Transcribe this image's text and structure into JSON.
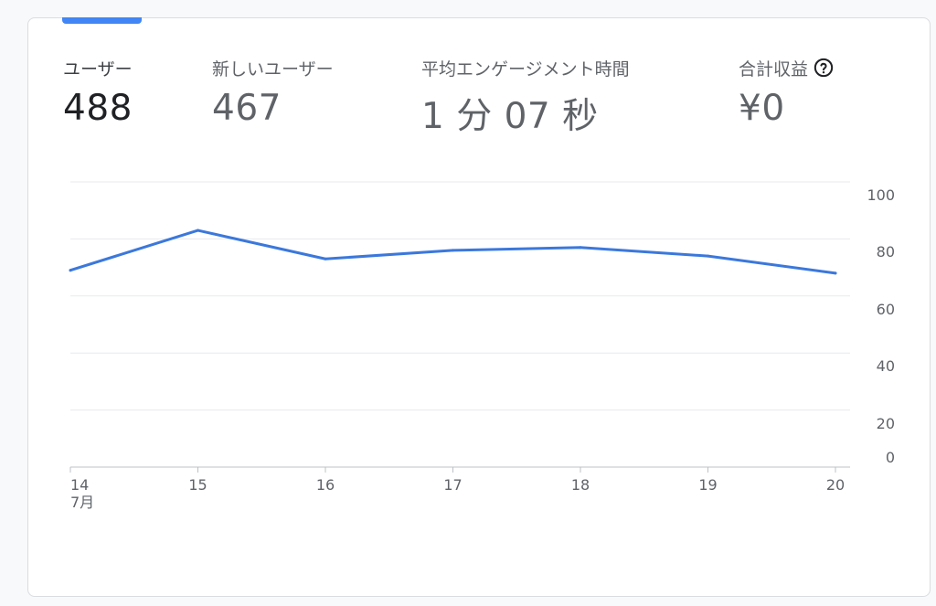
{
  "metrics": [
    {
      "label": "ユーザー",
      "value": "488"
    },
    {
      "label": "新しいユーザー",
      "value": "467"
    },
    {
      "label": "平均エンゲージメント時間",
      "value": "1 分 07 秒"
    },
    {
      "label": "合計収益",
      "value": "¥0"
    }
  ],
  "help_icon": "help-circle-icon",
  "colors": {
    "line": "#3b78dc",
    "tab_indicator": "#4285f4"
  },
  "chart_data": {
    "type": "line",
    "x": [
      "14",
      "15",
      "16",
      "17",
      "18",
      "19",
      "20"
    ],
    "x_sublabel": "7月",
    "series": [
      {
        "values": [
          69,
          83,
          73,
          76,
          77,
          74,
          68
        ]
      }
    ],
    "y_ticks": [
      "100",
      "80",
      "60",
      "40",
      "20",
      "0"
    ],
    "ylim": [
      0,
      100
    ],
    "grid": true
  }
}
